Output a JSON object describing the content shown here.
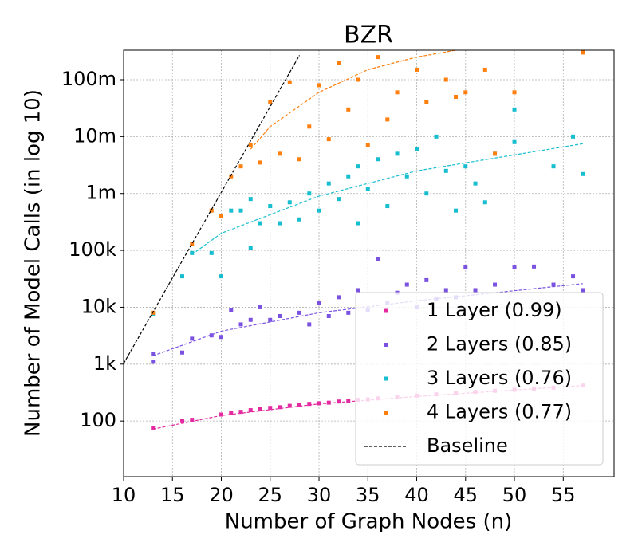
{
  "chart_data": {
    "type": "scatter",
    "title": "BZR",
    "x_label": "Number of Graph Nodes (n)",
    "y_label": "Number of Model Calls (in log 10)",
    "xlim": [
      10,
      60.2
    ],
    "ylim": [
      10.5,
      330000000
    ],
    "log_y": true,
    "grid": true,
    "legend": "lower right",
    "xticks": [
      10,
      15,
      20,
      25,
      30,
      35,
      40,
      45,
      50,
      55
    ],
    "yticks": [
      100,
      {
        "value": 1000,
        "label": "1k"
      },
      {
        "value": 10000,
        "label": "10k"
      },
      {
        "value": 100000,
        "label": "100k"
      },
      {
        "value": 1000000,
        "label": "1m"
      },
      {
        "value": 10000000,
        "label": "10m"
      },
      {
        "value": 100000000,
        "label": "100m"
      }
    ],
    "series": [
      {
        "name": "1 Layer (0.99)",
        "color": "#e32aa0",
        "x": [
          13,
          16,
          17,
          20,
          21,
          22,
          23,
          24,
          25,
          26,
          27,
          28,
          29,
          30,
          31,
          32,
          33,
          34,
          35,
          36,
          38,
          40,
          42,
          44,
          46,
          48,
          50,
          52,
          54,
          57
        ],
        "values": [
          75,
          100,
          105,
          130,
          140,
          145,
          155,
          165,
          170,
          175,
          185,
          195,
          200,
          205,
          210,
          220,
          225,
          235,
          240,
          250,
          265,
          280,
          295,
          310,
          325,
          340,
          355,
          370,
          385,
          420
        ],
        "fit": {
          "x": [
            13,
            20,
            30,
            40,
            57
          ],
          "values": [
            72,
            125,
            200,
            270,
            420
          ]
        }
      },
      {
        "name": "2 Layers (0.85)",
        "color": "#7b52e0",
        "x": [
          13,
          13,
          16,
          17,
          19,
          20,
          21,
          22,
          23,
          24,
          25,
          26,
          28,
          29,
          30,
          31,
          32,
          33,
          34,
          35,
          36,
          37,
          38,
          39,
          40,
          41,
          42,
          43,
          44,
          45,
          46,
          48,
          50,
          52,
          54,
          56,
          57
        ],
        "values": [
          1100,
          1500,
          1600,
          2800,
          3200,
          3000,
          9000,
          5000,
          6000,
          10000,
          6000,
          7000,
          8000,
          5000,
          12000,
          7000,
          15000,
          8000,
          20000,
          9000,
          70000,
          12000,
          18000,
          25000,
          10000,
          30000,
          14000,
          20000,
          15000,
          50000,
          20000,
          25000,
          50000,
          52000,
          25000,
          35000,
          20000
        ],
        "fit": {
          "x": [
            13,
            20,
            30,
            40,
            57
          ],
          "values": [
            1400,
            3800,
            8000,
            13000,
            26000
          ]
        }
      },
      {
        "name": "3 Layers (0.76)",
        "color": "#17becf",
        "x": [
          13,
          16,
          17,
          19,
          20,
          20,
          21,
          22,
          23,
          23,
          24,
          25,
          26,
          27,
          28,
          29,
          30,
          31,
          32,
          33,
          34,
          34,
          35,
          36,
          37,
          38,
          39,
          40,
          41,
          42,
          43,
          44,
          45,
          46,
          47,
          48,
          50,
          50,
          54,
          56,
          57
        ],
        "values": [
          7500,
          35000,
          90000,
          90000,
          35000,
          400000,
          500000,
          500000,
          110000,
          800000,
          300000,
          600000,
          300000,
          700000,
          350000,
          1000000,
          500000,
          1500000,
          800000,
          2000000,
          3000000,
          300000,
          1200000,
          4000000,
          600000,
          5000000,
          2000000,
          6000000,
          1000000,
          10000000,
          2500000,
          500000,
          3000000,
          1500000,
          700000,
          5000000,
          30000000,
          8000000,
          3000000,
          10000000,
          2200000
        ],
        "fit": {
          "x": [
            17,
            20,
            30,
            40,
            57
          ],
          "values": [
            85000,
            200000,
            900000,
            2500000,
            7500000
          ]
        }
      },
      {
        "name": "4 Layers (0.77)",
        "color": "#ff7f0e",
        "x": [
          13,
          17,
          19,
          20,
          21,
          22,
          23,
          24,
          25,
          26,
          27,
          28,
          29,
          30,
          31,
          32,
          33,
          34,
          35,
          36,
          37,
          38,
          40,
          41,
          43,
          44,
          45,
          47,
          48,
          50,
          57
        ],
        "values": [
          8000,
          130000,
          500000,
          400000,
          2000000,
          3000000,
          7000000,
          3500000,
          40000000,
          5000000,
          90000000,
          4000000,
          15000000,
          80000000,
          9000000,
          200000000,
          30000000,
          100000000,
          7000000,
          250000000,
          20000000,
          60000000,
          150000000,
          40000000,
          100000000,
          50000000,
          60000000,
          150000000,
          5000000,
          60000000,
          300000000
        ],
        "fit": {
          "x": [
            23,
            25,
            30,
            35,
            40,
            44
          ],
          "values": [
            6000000,
            15000000,
            60000000,
            150000000,
            250000000,
            330000000
          ]
        }
      }
    ],
    "baseline": {
      "name": "Baseline",
      "color": "#000000",
      "x": [
        10,
        12,
        14,
        16,
        18,
        20,
        22,
        24,
        26,
        28
      ],
      "values": [
        1024,
        4096,
        16384,
        65536,
        262144,
        1048576,
        4194304,
        16777216,
        67108864,
        268435456
      ]
    }
  }
}
